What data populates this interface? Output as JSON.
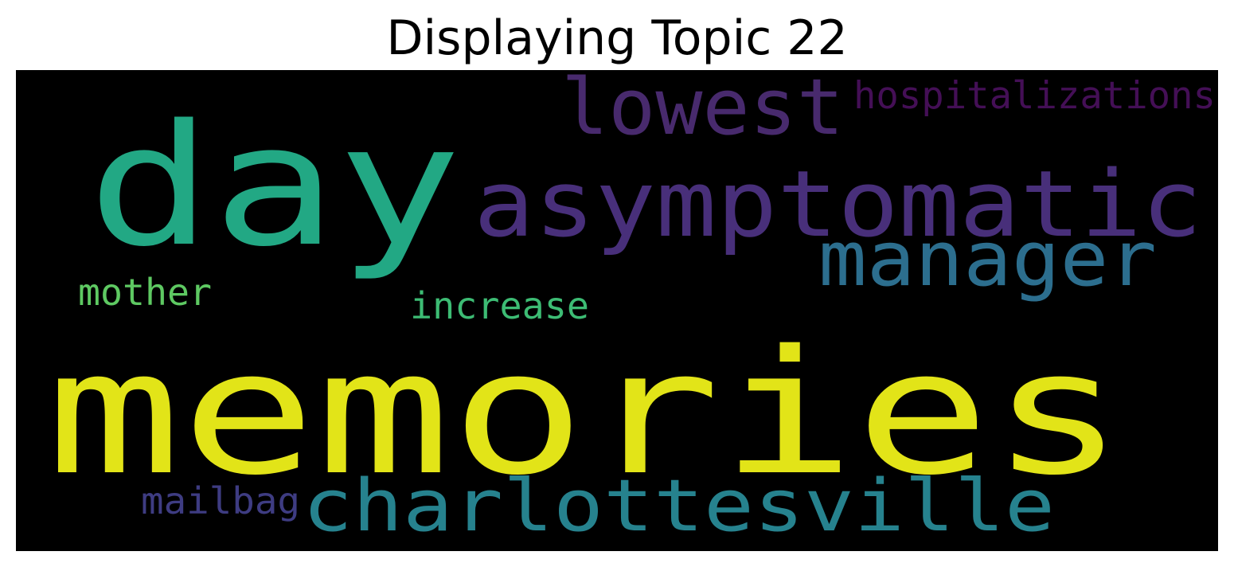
{
  "chart_data": {
    "type": "wordcloud",
    "title": "Displaying Topic 22",
    "background": "#000000",
    "colormap": "viridis",
    "words": [
      {
        "text": "memories",
        "color": "#e2e418"
      },
      {
        "text": "day",
        "color": "#22a884"
      },
      {
        "text": "asymptomatic",
        "color": "#482f7a"
      },
      {
        "text": "lowest",
        "color": "#482a6d"
      },
      {
        "text": "manager",
        "color": "#2c6e8e"
      },
      {
        "text": "charlottesville",
        "color": "#26828e"
      },
      {
        "text": "hospitalizations",
        "color": "#440f56"
      },
      {
        "text": "mother",
        "color": "#5ec962"
      },
      {
        "text": "increase",
        "color": "#3dbc74"
      },
      {
        "text": "mailbag",
        "color": "#3e3c82"
      }
    ]
  }
}
